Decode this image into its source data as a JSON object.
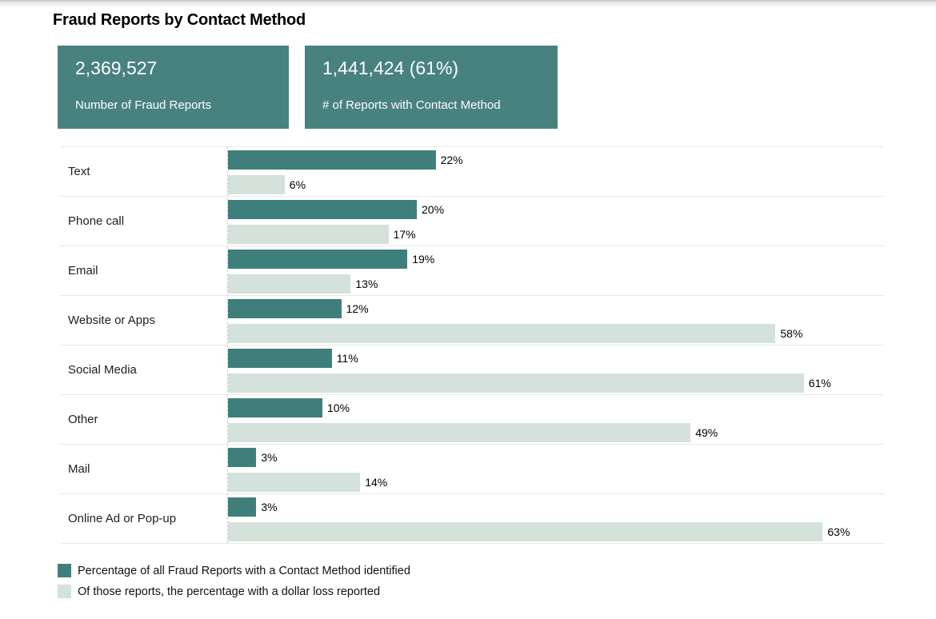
{
  "title": "Fraud Reports by Contact Method",
  "stat_cards": [
    {
      "value": "2,369,527",
      "label": "Number of Fraud Reports"
    },
    {
      "value": "1,441,424 (61%)",
      "label": "# of Reports with Contact Method"
    }
  ],
  "colors": {
    "card_background": "#48827f",
    "primary_bar": "#3f7f7b",
    "secondary_bar": "#d5e1db",
    "row_separator": "#e8e8e8"
  },
  "chart_data": {
    "type": "bar",
    "orientation": "horizontal",
    "title": "Fraud Reports by Contact Method",
    "categories": [
      "Text",
      "Phone call",
      "Email",
      "Website or Apps",
      "Social Media",
      "Other",
      "Mail",
      "Online Ad or Pop-up"
    ],
    "series": [
      {
        "name": "Percentage of all Fraud Reports with a Contact Method identified",
        "color": "#3f7f7b",
        "values": [
          22,
          20,
          19,
          12,
          11,
          10,
          3,
          3
        ]
      },
      {
        "name": "Of those reports, the percentage with a dollar loss reported",
        "color": "#d5e1db",
        "values": [
          6,
          17,
          13,
          58,
          61,
          49,
          14,
          63
        ]
      }
    ],
    "value_suffix": "%",
    "xlim": [
      0,
      69
    ],
    "grid": "row-separators",
    "legend_position": "bottom"
  }
}
